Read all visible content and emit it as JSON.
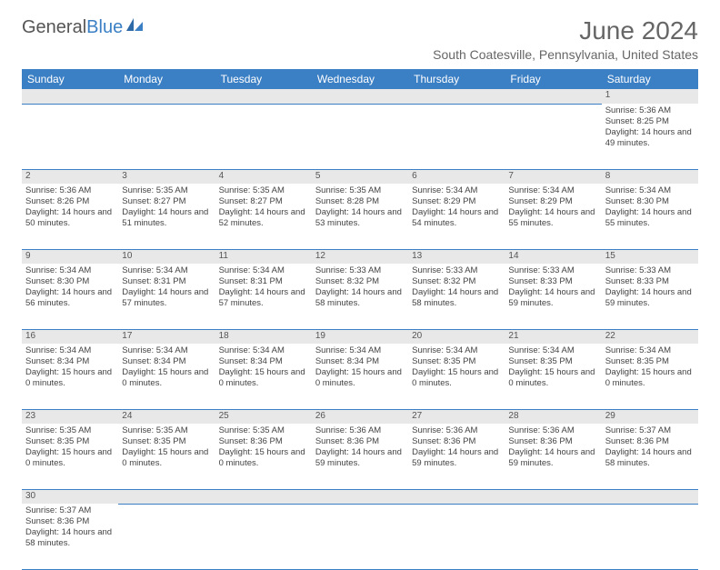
{
  "header": {
    "logo_part1": "General",
    "logo_part2": "Blue",
    "month_title": "June 2024",
    "location": "South Coatesville, Pennsylvania, United States"
  },
  "colors": {
    "header_bg": "#3b7fc4",
    "header_text": "#ffffff",
    "daynum_bg": "#e8e8e8",
    "grid_line": "#3b7fc4",
    "body_text": "#444444"
  },
  "calendar": {
    "day_headers": [
      "Sunday",
      "Monday",
      "Tuesday",
      "Wednesday",
      "Thursday",
      "Friday",
      "Saturday"
    ],
    "weeks": [
      [
        null,
        null,
        null,
        null,
        null,
        null,
        {
          "n": "1",
          "sunrise": "5:36 AM",
          "sunset": "8:25 PM",
          "daylight": "14 hours and 49 minutes."
        }
      ],
      [
        {
          "n": "2",
          "sunrise": "5:36 AM",
          "sunset": "8:26 PM",
          "daylight": "14 hours and 50 minutes."
        },
        {
          "n": "3",
          "sunrise": "5:35 AM",
          "sunset": "8:27 PM",
          "daylight": "14 hours and 51 minutes."
        },
        {
          "n": "4",
          "sunrise": "5:35 AM",
          "sunset": "8:27 PM",
          "daylight": "14 hours and 52 minutes."
        },
        {
          "n": "5",
          "sunrise": "5:35 AM",
          "sunset": "8:28 PM",
          "daylight": "14 hours and 53 minutes."
        },
        {
          "n": "6",
          "sunrise": "5:34 AM",
          "sunset": "8:29 PM",
          "daylight": "14 hours and 54 minutes."
        },
        {
          "n": "7",
          "sunrise": "5:34 AM",
          "sunset": "8:29 PM",
          "daylight": "14 hours and 55 minutes."
        },
        {
          "n": "8",
          "sunrise": "5:34 AM",
          "sunset": "8:30 PM",
          "daylight": "14 hours and 55 minutes."
        }
      ],
      [
        {
          "n": "9",
          "sunrise": "5:34 AM",
          "sunset": "8:30 PM",
          "daylight": "14 hours and 56 minutes."
        },
        {
          "n": "10",
          "sunrise": "5:34 AM",
          "sunset": "8:31 PM",
          "daylight": "14 hours and 57 minutes."
        },
        {
          "n": "11",
          "sunrise": "5:34 AM",
          "sunset": "8:31 PM",
          "daylight": "14 hours and 57 minutes."
        },
        {
          "n": "12",
          "sunrise": "5:33 AM",
          "sunset": "8:32 PM",
          "daylight": "14 hours and 58 minutes."
        },
        {
          "n": "13",
          "sunrise": "5:33 AM",
          "sunset": "8:32 PM",
          "daylight": "14 hours and 58 minutes."
        },
        {
          "n": "14",
          "sunrise": "5:33 AM",
          "sunset": "8:33 PM",
          "daylight": "14 hours and 59 minutes."
        },
        {
          "n": "15",
          "sunrise": "5:33 AM",
          "sunset": "8:33 PM",
          "daylight": "14 hours and 59 minutes."
        }
      ],
      [
        {
          "n": "16",
          "sunrise": "5:34 AM",
          "sunset": "8:34 PM",
          "daylight": "15 hours and 0 minutes."
        },
        {
          "n": "17",
          "sunrise": "5:34 AM",
          "sunset": "8:34 PM",
          "daylight": "15 hours and 0 minutes."
        },
        {
          "n": "18",
          "sunrise": "5:34 AM",
          "sunset": "8:34 PM",
          "daylight": "15 hours and 0 minutes."
        },
        {
          "n": "19",
          "sunrise": "5:34 AM",
          "sunset": "8:34 PM",
          "daylight": "15 hours and 0 minutes."
        },
        {
          "n": "20",
          "sunrise": "5:34 AM",
          "sunset": "8:35 PM",
          "daylight": "15 hours and 0 minutes."
        },
        {
          "n": "21",
          "sunrise": "5:34 AM",
          "sunset": "8:35 PM",
          "daylight": "15 hours and 0 minutes."
        },
        {
          "n": "22",
          "sunrise": "5:34 AM",
          "sunset": "8:35 PM",
          "daylight": "15 hours and 0 minutes."
        }
      ],
      [
        {
          "n": "23",
          "sunrise": "5:35 AM",
          "sunset": "8:35 PM",
          "daylight": "15 hours and 0 minutes."
        },
        {
          "n": "24",
          "sunrise": "5:35 AM",
          "sunset": "8:35 PM",
          "daylight": "15 hours and 0 minutes."
        },
        {
          "n": "25",
          "sunrise": "5:35 AM",
          "sunset": "8:36 PM",
          "daylight": "15 hours and 0 minutes."
        },
        {
          "n": "26",
          "sunrise": "5:36 AM",
          "sunset": "8:36 PM",
          "daylight": "14 hours and 59 minutes."
        },
        {
          "n": "27",
          "sunrise": "5:36 AM",
          "sunset": "8:36 PM",
          "daylight": "14 hours and 59 minutes."
        },
        {
          "n": "28",
          "sunrise": "5:36 AM",
          "sunset": "8:36 PM",
          "daylight": "14 hours and 59 minutes."
        },
        {
          "n": "29",
          "sunrise": "5:37 AM",
          "sunset": "8:36 PM",
          "daylight": "14 hours and 58 minutes."
        }
      ],
      [
        {
          "n": "30",
          "sunrise": "5:37 AM",
          "sunset": "8:36 PM",
          "daylight": "14 hours and 58 minutes."
        },
        null,
        null,
        null,
        null,
        null,
        null
      ]
    ],
    "labels": {
      "sunrise_prefix": "Sunrise: ",
      "sunset_prefix": "Sunset: ",
      "daylight_prefix": "Daylight: "
    }
  }
}
